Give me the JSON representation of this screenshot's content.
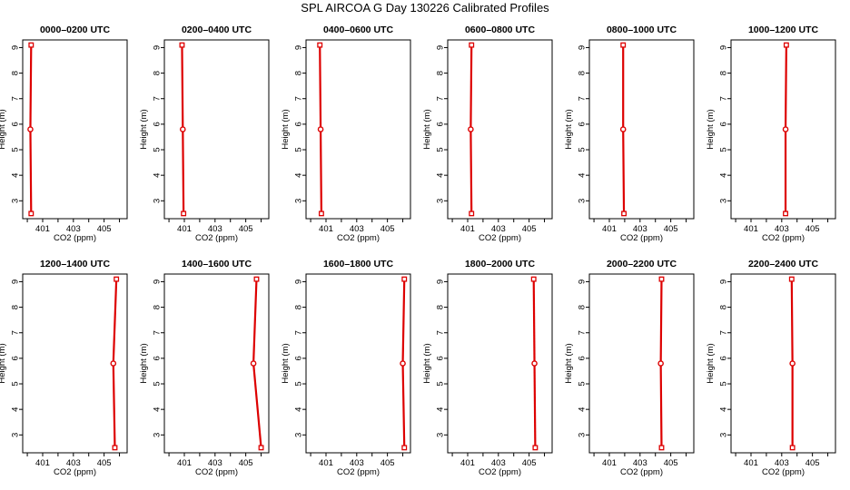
{
  "page": {
    "title": "SPL AIRCOA G  Day 130226  Calibrated Profiles"
  },
  "colors": {
    "profile": "#dd0000",
    "axis": "#000000"
  },
  "chart_data": [
    {
      "type": "line",
      "title": "0000–0200 UTC",
      "xlabel": "CO2 (ppm)",
      "ylabel": "Height (m)",
      "xlim": [
        399.7,
        406.5
      ],
      "ylim": [
        2.3,
        9.3
      ],
      "x_ticks": [
        "401",
        "403",
        "405"
      ],
      "y_ticks": [
        "3",
        "4",
        "5",
        "6",
        "7",
        "8",
        "9"
      ],
      "series": [
        {
          "x": [
            400.25,
            400.2,
            400.25
          ],
          "y": [
            2.5,
            5.8,
            9.1
          ]
        }
      ]
    },
    {
      "type": "line",
      "title": "0200–0400 UTC",
      "xlabel": "CO2 (ppm)",
      "ylabel": "Height (m)",
      "xlim": [
        399.7,
        406.5
      ],
      "ylim": [
        2.3,
        9.3
      ],
      "x_ticks": [
        "401",
        "403",
        "405"
      ],
      "y_ticks": [
        "3",
        "4",
        "5",
        "6",
        "7",
        "8",
        "9"
      ],
      "series": [
        {
          "x": [
            400.95,
            400.9,
            400.85
          ],
          "y": [
            2.5,
            5.8,
            9.1
          ]
        }
      ]
    },
    {
      "type": "line",
      "title": "0400–0600 UTC",
      "xlabel": "CO2 (ppm)",
      "ylabel": "Height (m)",
      "xlim": [
        399.7,
        406.5
      ],
      "ylim": [
        2.3,
        9.3
      ],
      "x_ticks": [
        "401",
        "403",
        "405"
      ],
      "y_ticks": [
        "3",
        "4",
        "5",
        "6",
        "7",
        "8",
        "9"
      ],
      "series": [
        {
          "x": [
            400.7,
            400.65,
            400.6
          ],
          "y": [
            2.5,
            5.8,
            9.1
          ]
        }
      ]
    },
    {
      "type": "line",
      "title": "0600–0800 UTC",
      "xlabel": "CO2 (ppm)",
      "ylabel": "Height (m)",
      "xlim": [
        399.7,
        406.5
      ],
      "ylim": [
        2.3,
        9.3
      ],
      "x_ticks": [
        "401",
        "403",
        "405"
      ],
      "y_ticks": [
        "3",
        "4",
        "5",
        "6",
        "7",
        "8",
        "9"
      ],
      "series": [
        {
          "x": [
            401.25,
            401.2,
            401.25
          ],
          "y": [
            2.5,
            5.8,
            9.1
          ]
        }
      ]
    },
    {
      "type": "line",
      "title": "0800–1000 UTC",
      "xlabel": "CO2 (ppm)",
      "ylabel": "Height (m)",
      "xlim": [
        399.7,
        406.5
      ],
      "ylim": [
        2.3,
        9.3
      ],
      "x_ticks": [
        "401",
        "403",
        "405"
      ],
      "y_ticks": [
        "3",
        "4",
        "5",
        "6",
        "7",
        "8",
        "9"
      ],
      "series": [
        {
          "x": [
            401.95,
            401.9,
            401.9
          ],
          "y": [
            2.5,
            5.8,
            9.1
          ]
        }
      ]
    },
    {
      "type": "line",
      "title": "1000–1200 UTC",
      "xlabel": "CO2 (ppm)",
      "ylabel": "Height (m)",
      "xlim": [
        399.7,
        406.5
      ],
      "ylim": [
        2.3,
        9.3
      ],
      "x_ticks": [
        "401",
        "403",
        "405"
      ],
      "y_ticks": [
        "3",
        "4",
        "5",
        "6",
        "7",
        "8",
        "9"
      ],
      "series": [
        {
          "x": [
            403.25,
            403.25,
            403.3
          ],
          "y": [
            2.5,
            5.8,
            9.1
          ]
        }
      ]
    },
    {
      "type": "line",
      "title": "1200–1400 UTC",
      "xlabel": "CO2 (ppm)",
      "ylabel": "Height (m)",
      "xlim": [
        399.7,
        406.5
      ],
      "ylim": [
        2.3,
        9.3
      ],
      "x_ticks": [
        "401",
        "403",
        "405"
      ],
      "y_ticks": [
        "3",
        "4",
        "5",
        "6",
        "7",
        "8",
        "9"
      ],
      "series": [
        {
          "x": [
            405.7,
            405.6,
            405.8
          ],
          "y": [
            2.5,
            5.8,
            9.1
          ]
        }
      ]
    },
    {
      "type": "line",
      "title": "1400–1600 UTC",
      "xlabel": "CO2 (ppm)",
      "ylabel": "Height (m)",
      "xlim": [
        399.7,
        406.5
      ],
      "ylim": [
        2.3,
        9.3
      ],
      "x_ticks": [
        "401",
        "403",
        "405"
      ],
      "y_ticks": [
        "3",
        "4",
        "5",
        "6",
        "7",
        "8",
        "9"
      ],
      "series": [
        {
          "x": [
            406.0,
            405.5,
            405.7
          ],
          "y": [
            2.5,
            5.8,
            9.1
          ]
        }
      ]
    },
    {
      "type": "line",
      "title": "1600–1800 UTC",
      "xlabel": "CO2 (ppm)",
      "ylabel": "Height (m)",
      "xlim": [
        399.7,
        406.5
      ],
      "ylim": [
        2.3,
        9.3
      ],
      "x_ticks": [
        "401",
        "403",
        "405"
      ],
      "y_ticks": [
        "3",
        "4",
        "5",
        "6",
        "7",
        "8",
        "9"
      ],
      "series": [
        {
          "x": [
            406.1,
            406.0,
            406.1
          ],
          "y": [
            2.5,
            5.8,
            9.1
          ]
        }
      ]
    },
    {
      "type": "line",
      "title": "1800–2000 UTC",
      "xlabel": "CO2 (ppm)",
      "ylabel": "Height (m)",
      "xlim": [
        399.7,
        406.5
      ],
      "ylim": [
        2.3,
        9.3
      ],
      "x_ticks": [
        "401",
        "403",
        "405"
      ],
      "y_ticks": [
        "3",
        "4",
        "5",
        "6",
        "7",
        "8",
        "9"
      ],
      "series": [
        {
          "x": [
            405.4,
            405.35,
            405.3
          ],
          "y": [
            2.5,
            5.8,
            9.1
          ]
        }
      ]
    },
    {
      "type": "line",
      "title": "2000–2200 UTC",
      "xlabel": "CO2 (ppm)",
      "ylabel": "Height (m)",
      "xlim": [
        399.7,
        406.5
      ],
      "ylim": [
        2.3,
        9.3
      ],
      "x_ticks": [
        "401",
        "403",
        "405"
      ],
      "y_ticks": [
        "3",
        "4",
        "5",
        "6",
        "7",
        "8",
        "9"
      ],
      "series": [
        {
          "x": [
            404.4,
            404.35,
            404.4
          ],
          "y": [
            2.5,
            5.8,
            9.1
          ]
        }
      ]
    },
    {
      "type": "line",
      "title": "2200–2400 UTC",
      "xlabel": "CO2 (ppm)",
      "ylabel": "Height (m)",
      "xlim": [
        399.7,
        406.5
      ],
      "ylim": [
        2.3,
        9.3
      ],
      "x_ticks": [
        "401",
        "403",
        "405"
      ],
      "y_ticks": [
        "3",
        "4",
        "5",
        "6",
        "7",
        "8",
        "9"
      ],
      "series": [
        {
          "x": [
            403.7,
            403.7,
            403.65
          ],
          "y": [
            2.5,
            5.8,
            9.1
          ]
        }
      ]
    }
  ]
}
